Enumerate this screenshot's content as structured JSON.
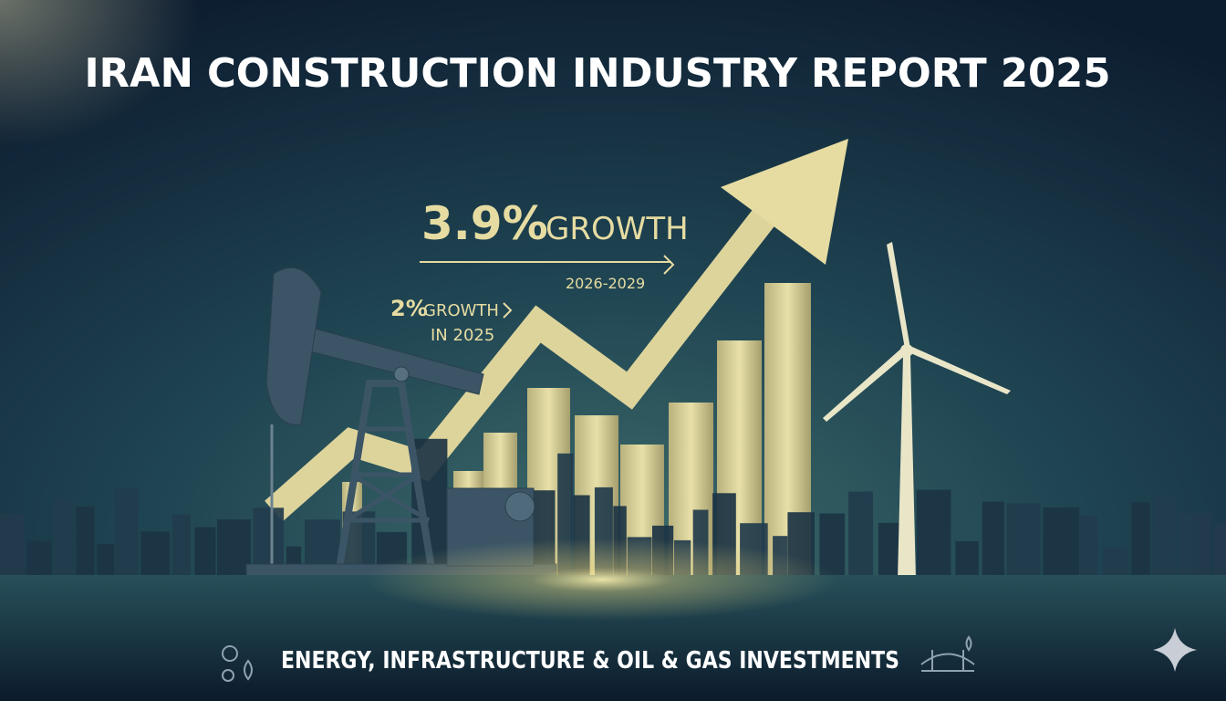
{
  "header": {
    "title": "IRAN CONSTRUCTION INDUSTRY REPORT 2025"
  },
  "callouts": [
    {
      "value": "3.9%",
      "label": "GROWTH",
      "period": "2026-2029"
    },
    {
      "value": "2%",
      "label": "GROWTH",
      "period": "IN 2025"
    }
  ],
  "footer": {
    "text": "ENERGY, INFRASTRUCTURE & OIL & GAS INVESTMENTS"
  }
}
